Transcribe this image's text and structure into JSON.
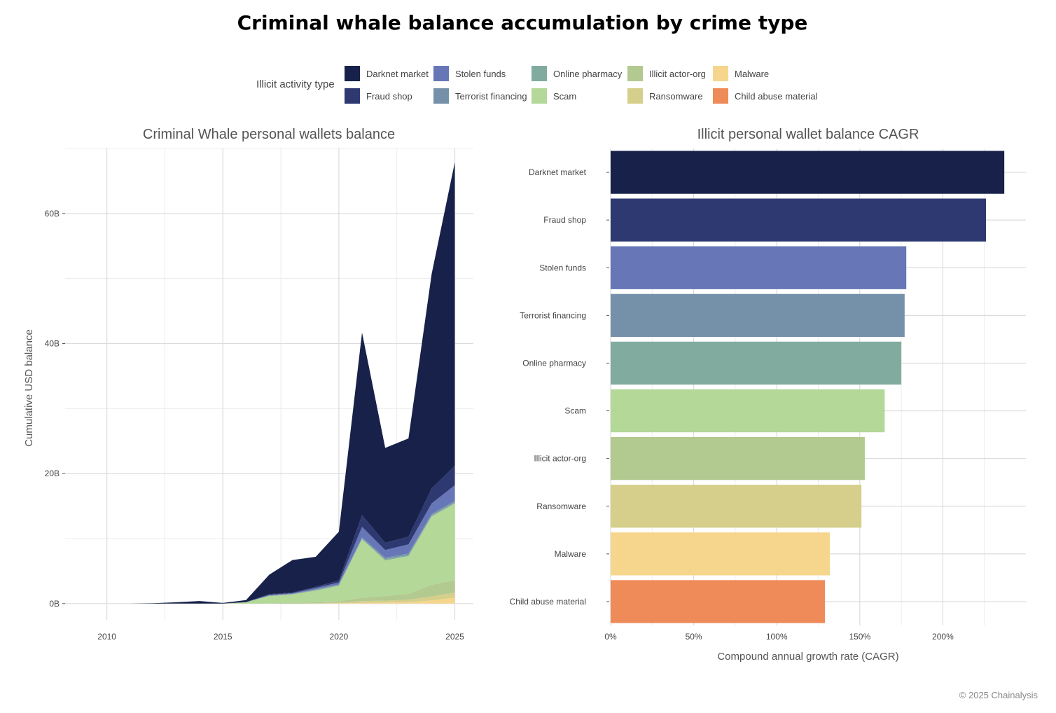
{
  "title": "Criminal whale balance accumulation by crime type",
  "legend": {
    "title": "Illicit activity type",
    "items": [
      {
        "label": "Darknet market",
        "color": "#172149"
      },
      {
        "label": "Fraud shop",
        "color": "#2d3970"
      },
      {
        "label": "Stolen funds",
        "color": "#6776b6"
      },
      {
        "label": "Terrorist financing",
        "color": "#7591aa"
      },
      {
        "label": "Online pharmacy",
        "color": "#82aba0"
      },
      {
        "label": "Scam",
        "color": "#b3d897"
      },
      {
        "label": "Illicit actor-org",
        "color": "#b2c98f"
      },
      {
        "label": "Ransomware",
        "color": "#d5cf8b"
      },
      {
        "label": "Malware",
        "color": "#f6d68d"
      },
      {
        "label": "Child abuse material",
        "color": "#ee8b59"
      }
    ]
  },
  "copyright": "© 2025 Chainalysis",
  "chart_data": [
    {
      "type": "area",
      "title": "Criminal Whale personal wallets balance",
      "xlabel": "",
      "ylabel": "Cumulative USD balance",
      "stacked": true,
      "x": [
        2009,
        2010,
        2011,
        2012,
        2013,
        2014,
        2015,
        2016,
        2017,
        2018,
        2019,
        2020,
        2021,
        2022,
        2023,
        2024,
        2025
      ],
      "xlim": [
        2008.2,
        2025.8
      ],
      "ylim": [
        -2.5,
        70
      ],
      "xticks": [
        "2010",
        "2015",
        "2020",
        "2025"
      ],
      "yticks": [
        {
          "value": 0,
          "label": "0B"
        },
        {
          "value": 20,
          "label": "20B"
        },
        {
          "value": 40,
          "label": "40B"
        },
        {
          "value": 60,
          "label": "60B"
        }
      ],
      "grid": true,
      "series": [
        {
          "name": "Malware",
          "values": [
            0,
            0,
            0,
            0,
            0,
            0,
            0,
            0,
            0,
            0,
            0,
            0.05,
            0.1,
            0.15,
            0.2,
            0.5,
            0.9
          ]
        },
        {
          "name": "Ransomware",
          "values": [
            0,
            0,
            0,
            0,
            0,
            0,
            0,
            0,
            0,
            0,
            0.05,
            0.1,
            0.3,
            0.3,
            0.4,
            0.6,
            0.8
          ]
        },
        {
          "name": "Illicit actor-org",
          "values": [
            0,
            0,
            0,
            0,
            0,
            0,
            0,
            0,
            0.05,
            0.1,
            0.15,
            0.2,
            0.5,
            0.7,
            0.9,
            1.8,
            1.9
          ]
        },
        {
          "name": "Scam",
          "values": [
            0,
            0,
            0,
            0,
            0,
            0,
            0,
            0.2,
            1.1,
            1.3,
            1.8,
            2.4,
            9.0,
            5.5,
            5.8,
            10.5,
            11.8
          ]
        },
        {
          "name": "Online pharmacy",
          "values": [
            0,
            0,
            0,
            0,
            0,
            0,
            0,
            0,
            0.05,
            0.05,
            0.1,
            0.1,
            0.1,
            0.2,
            0.2,
            0.2,
            0.2
          ]
        },
        {
          "name": "Terrorist financing",
          "values": [
            0,
            0,
            0,
            0,
            0,
            0,
            0,
            0,
            0.05,
            0.05,
            0.1,
            0.1,
            0.2,
            0.2,
            0.2,
            0.2,
            0.2
          ]
        },
        {
          "name": "Stolen funds",
          "values": [
            0,
            0,
            0,
            0,
            0,
            0,
            0,
            0,
            0.1,
            0.1,
            0.2,
            0.3,
            1.6,
            1.2,
            1.4,
            1.6,
            2.4
          ]
        },
        {
          "name": "Fraud shop",
          "values": [
            0,
            0,
            0,
            0,
            0,
            0,
            0,
            0.05,
            0.1,
            0.1,
            0.2,
            0.3,
            1.8,
            1.1,
            1.2,
            2.3,
            3.0
          ]
        },
        {
          "name": "Darknet market",
          "values": [
            0,
            0,
            0,
            0.05,
            0.2,
            0.4,
            0.1,
            0.3,
            3.0,
            5.0,
            4.6,
            7.5,
            28.1,
            14.6,
            15.1,
            33.0,
            46.7
          ]
        }
      ]
    },
    {
      "type": "bar",
      "orientation": "horizontal",
      "title": "Illicit personal wallet balance CAGR",
      "xlabel": "Compound annual growth rate (CAGR)",
      "ylabel": "",
      "xlim": [
        0,
        2.5
      ],
      "xticks": [
        {
          "value": 0,
          "label": "0%"
        },
        {
          "value": 0.5,
          "label": "50%"
        },
        {
          "value": 1.0,
          "label": "100%"
        },
        {
          "value": 1.5,
          "label": "150%"
        },
        {
          "value": 2.0,
          "label": "200%"
        }
      ],
      "grid": true,
      "categories": [
        "Darknet market",
        "Fraud shop",
        "Stolen funds",
        "Terrorist financing",
        "Online pharmacy",
        "Scam",
        "Illicit actor-org",
        "Ransomware",
        "Malware",
        "Child abuse material"
      ],
      "values": [
        2.37,
        2.26,
        1.78,
        1.77,
        1.75,
        1.65,
        1.53,
        1.51,
        1.32,
        1.29
      ]
    }
  ]
}
